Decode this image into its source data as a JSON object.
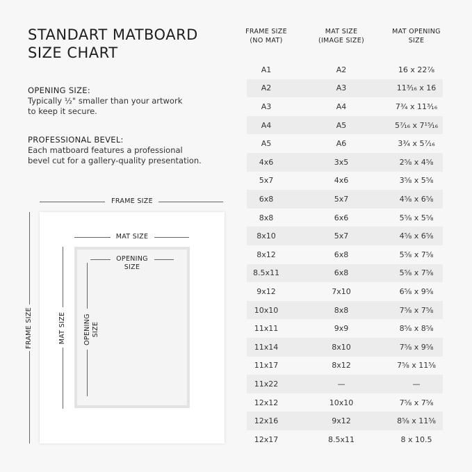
{
  "title": [
    "STANDART MATBOARD",
    "SIZE CHART"
  ],
  "opening": {
    "heading": "OPENING SIZE:",
    "text": [
      "Typically ½\" smaller than your artwork",
      "to keep it secure."
    ]
  },
  "bevel": {
    "heading": "PROFESSIONAL BEVEL:",
    "text": [
      "Each matboard features a professional",
      "bevel cut for a gallery-quality presentation."
    ]
  },
  "diagram": {
    "frame_size": "FRAME SIZE",
    "mat_size": "MAT SIZE",
    "opening_size": [
      "OPENING",
      "SIZE"
    ]
  },
  "table": {
    "headers": [
      [
        "FRAME SIZE",
        "(NO MAT)"
      ],
      [
        "MAT SIZE",
        "(IMAGE SIZE)"
      ],
      [
        "MAT OPENING",
        "SIZE"
      ]
    ],
    "rows": [
      [
        "A1",
        "A2",
        "16 x 22⅞"
      ],
      [
        "A2",
        "A3",
        "11³⁄₁₆ x 16"
      ],
      [
        "A3",
        "A4",
        "7¾ x 11³⁄₁₆"
      ],
      [
        "A4",
        "A5",
        "5⁷⁄₁₆ x 7¹⁵⁄₁₆"
      ],
      [
        "A5",
        "A6",
        "3¾ x 5⁷⁄₁₆"
      ],
      [
        "4x6",
        "3x5",
        "2⅝ x 4⅝"
      ],
      [
        "5x7",
        "4x6",
        "3⅝ x 5⅝"
      ],
      [
        "6x8",
        "5x7",
        "4⅝ x 6⅝"
      ],
      [
        "8x8",
        "6x6",
        "5⅝ x 5⅝"
      ],
      [
        "8x10",
        "5x7",
        "4⅝ x 6⅝"
      ],
      [
        "8x12",
        "6x8",
        "5⅝ x 7⅝"
      ],
      [
        "8.5x11",
        "6x8",
        "5⅝ x 7⅝"
      ],
      [
        "9x12",
        "7x10",
        "6⅝ x 9⅝"
      ],
      [
        "10x10",
        "8x8",
        "7⅝ x 7⅝"
      ],
      [
        "11x11",
        "9x9",
        "8⅝ x 8⅝"
      ],
      [
        "11x14",
        "8x10",
        "7⅝ x 9⅝"
      ],
      [
        "11x17",
        "8x12",
        "7⅝ x 11⅝"
      ],
      [
        "11x22",
        "—",
        "—"
      ],
      [
        "12x12",
        "10x10",
        "7⅝ x 7⅝"
      ],
      [
        "12x16",
        "9x12",
        "8⅝ x 11⅝"
      ],
      [
        "12x17",
        "8.5x11",
        "8 x 10.5"
      ]
    ]
  },
  "colors": {
    "background": "#f7f7f7",
    "row_shade": "#ececec",
    "mat_opening": "#f4f4f4",
    "bevel": "#e3e3e3"
  }
}
